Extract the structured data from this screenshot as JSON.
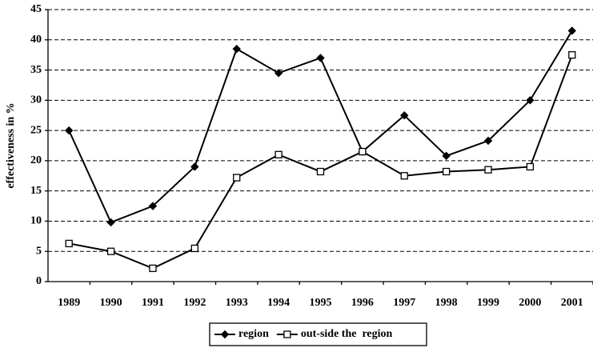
{
  "chart_data": {
    "type": "line",
    "y_label": "effectiveness in %",
    "categories": [
      "1989",
      "1990",
      "1991",
      "1992",
      "1993",
      "1994",
      "1995",
      "1996",
      "1997",
      "1998",
      "1999",
      "2000",
      "2001"
    ],
    "series": [
      {
        "name": "region",
        "color": "#000000",
        "marker": "diamond",
        "values": [
          25,
          9.8,
          12.5,
          19,
          38.5,
          34.5,
          37,
          21.5,
          27.5,
          20.8,
          23.3,
          30,
          41.5
        ]
      },
      {
        "name": "out-side the  region",
        "color": "#000000",
        "marker": "square",
        "values": [
          6.3,
          5,
          2.2,
          5.5,
          17.2,
          21,
          18.2,
          21.5,
          17.5,
          18.2,
          18.5,
          19,
          37.5
        ]
      }
    ],
    "ylim": [
      0,
      45
    ],
    "yticks": [
      0,
      5,
      10,
      15,
      20,
      25,
      30,
      35,
      40,
      45
    ],
    "grid": true,
    "legend": "bottom"
  }
}
